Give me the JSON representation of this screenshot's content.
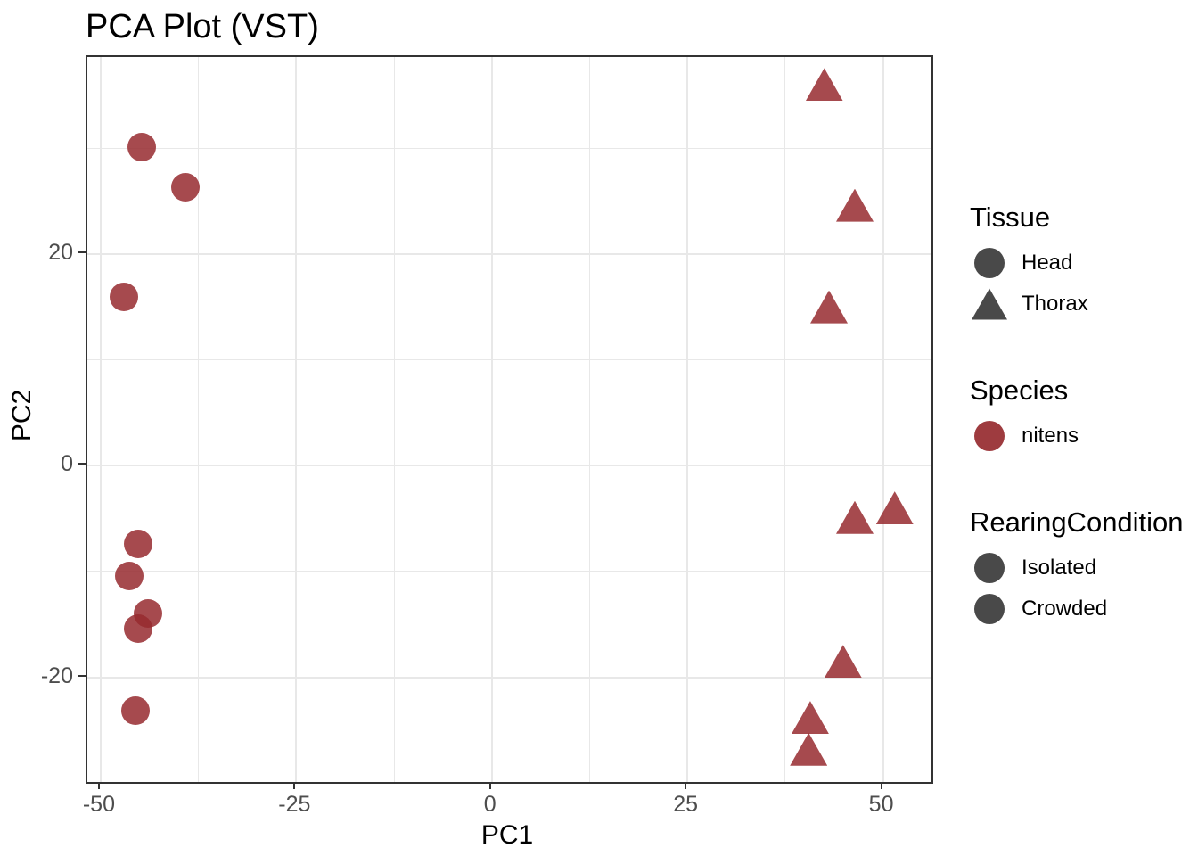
{
  "title": "PCA Plot (VST)",
  "chart_data": {
    "type": "scatter",
    "title": "PCA Plot (VST)",
    "xlabel": "PC1",
    "ylabel": "PC2",
    "xlim": [
      -51.7,
      56.2
    ],
    "ylim": [
      -29.9,
      38.6
    ],
    "x_ticks": [
      -50,
      -25,
      0,
      25,
      50
    ],
    "y_ticks": [
      20,
      0,
      -20
    ],
    "x_minor_ticks": [
      -37.5,
      -12.5,
      12.5,
      37.5
    ],
    "y_minor_ticks": [
      30,
      10,
      -10
    ],
    "grid": true,
    "legend_position": "right",
    "point_color": "#962a2f",
    "point_alpha": 0.85,
    "series": [
      {
        "name": "Head",
        "shape": "circle",
        "points": [
          {
            "pc1": -44.7,
            "pc2": 30.1
          },
          {
            "pc1": -39.2,
            "pc2": 26.3
          },
          {
            "pc1": -47.0,
            "pc2": 15.9
          },
          {
            "pc1": -45.2,
            "pc2": -7.4
          },
          {
            "pc1": -46.4,
            "pc2": -10.4
          },
          {
            "pc1": -44.0,
            "pc2": -14.0
          },
          {
            "pc1": -45.2,
            "pc2": -15.4
          },
          {
            "pc1": -45.6,
            "pc2": -23.2
          }
        ]
      },
      {
        "name": "Thorax",
        "shape": "triangle",
        "points": [
          {
            "pc1": 42.5,
            "pc2": 36.0
          },
          {
            "pc1": 46.4,
            "pc2": 24.6
          },
          {
            "pc1": 43.1,
            "pc2": 15.0
          },
          {
            "pc1": 46.4,
            "pc2": -4.9
          },
          {
            "pc1": 51.5,
            "pc2": -4.0
          },
          {
            "pc1": 44.9,
            "pc2": -18.5
          },
          {
            "pc1": 40.7,
            "pc2": -23.8
          },
          {
            "pc1": 40.5,
            "pc2": -26.8
          }
        ]
      }
    ]
  },
  "legend": {
    "groups": [
      {
        "title": "Tissue",
        "items": [
          {
            "label": "Head",
            "shape": "circle",
            "color": "#3a3a3a"
          },
          {
            "label": "Thorax",
            "shape": "triangle",
            "color": "#3a3a3a"
          }
        ]
      },
      {
        "title": "Species",
        "items": [
          {
            "label": "nitens",
            "shape": "circle",
            "color": "#962a2f"
          }
        ]
      },
      {
        "title": "RearingCondition",
        "items": [
          {
            "label": "Isolated",
            "shape": "circle",
            "color": "#3a3a3a"
          },
          {
            "label": "Crowded",
            "shape": "circle",
            "color": "#3a3a3a"
          }
        ]
      }
    ]
  },
  "colors": {
    "accent_red": "#962a2f",
    "glyph_dark": "#3a3a3a",
    "grid": "#e8e8e8",
    "panel_border": "#333333",
    "axis_text": "#4d4d4d"
  }
}
